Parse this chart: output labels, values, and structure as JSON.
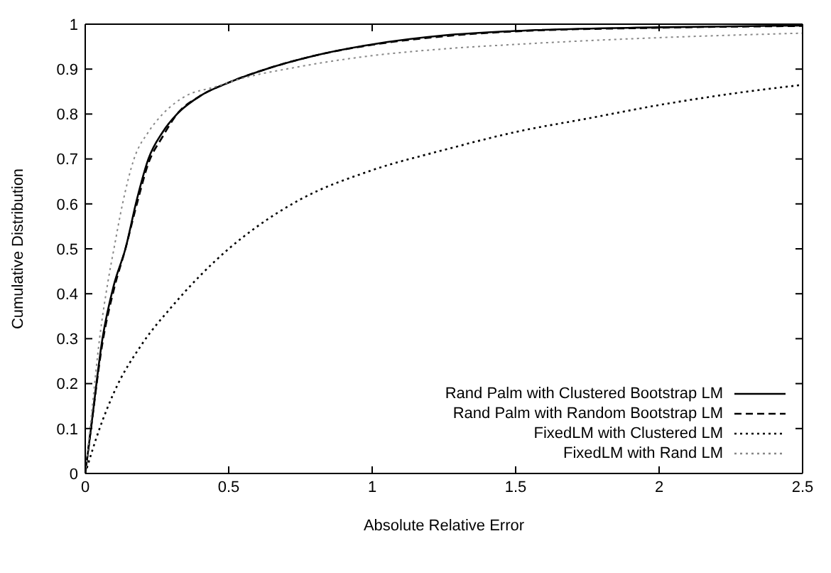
{
  "chart_data": {
    "type": "line",
    "xlabel": "Absolute Relative Error",
    "ylabel": "Cumulative Distribution",
    "xlim": [
      0,
      2.5
    ],
    "ylim": [
      0,
      1
    ],
    "xticks": [
      0,
      0.5,
      1,
      1.5,
      2,
      2.5
    ],
    "yticks": [
      0,
      0.1,
      0.2,
      0.3,
      0.4,
      0.5,
      0.6,
      0.7,
      0.8,
      0.9,
      1
    ],
    "legend": "bottom right",
    "marker": "none",
    "series": [
      {
        "name": "Rand Palm with Clustered Bootstrap LM",
        "color": "#000000",
        "line_style": "solid",
        "x": [
          0,
          0.02,
          0.06,
          0.1,
          0.14,
          0.18,
          0.22,
          0.27,
          0.32,
          0.4,
          0.5,
          0.63,
          0.8,
          1,
          1.25,
          1.5,
          2,
          2.5
        ],
        "values": [
          0,
          0.1,
          0.3,
          0.42,
          0.5,
          0.61,
          0.7,
          0.76,
          0.8,
          0.84,
          0.87,
          0.9,
          0.93,
          0.955,
          0.975,
          0.985,
          0.993,
          0.997
        ]
      },
      {
        "name": "Rand Palm with Random Bootstrap LM",
        "color": "#000000",
        "line_style": "dashed",
        "x": [
          0,
          0.02,
          0.06,
          0.1,
          0.14,
          0.18,
          0.22,
          0.27,
          0.32,
          0.4,
          0.5,
          0.63,
          0.8,
          1,
          1.25,
          1.5,
          2,
          2.5
        ],
        "values": [
          0,
          0.1,
          0.29,
          0.41,
          0.5,
          0.6,
          0.69,
          0.75,
          0.8,
          0.84,
          0.87,
          0.9,
          0.93,
          0.954,
          0.973,
          0.984,
          0.992,
          0.996
        ]
      },
      {
        "name": "FixedLM with Clustered LM",
        "color": "#000000",
        "line_style": "dotted",
        "x": [
          0,
          0.05,
          0.1,
          0.2,
          0.3,
          0.4,
          0.5,
          0.6,
          0.75,
          1,
          1.25,
          1.5,
          1.75,
          2,
          2.25,
          2.5
        ],
        "values": [
          0,
          0.1,
          0.18,
          0.29,
          0.37,
          0.44,
          0.5,
          0.55,
          0.61,
          0.675,
          0.72,
          0.76,
          0.79,
          0.82,
          0.845,
          0.865
        ]
      },
      {
        "name": "FixedLM with Rand LM",
        "color": "#888888",
        "line_style": "dotted",
        "x": [
          0,
          0.02,
          0.05,
          0.08,
          0.1,
          0.13,
          0.17,
          0.22,
          0.27,
          0.35,
          0.45,
          0.55,
          0.7,
          1,
          1.25,
          1.5,
          2,
          2.5
        ],
        "values": [
          0,
          0.12,
          0.3,
          0.43,
          0.5,
          0.6,
          0.7,
          0.76,
          0.8,
          0.84,
          0.86,
          0.88,
          0.9,
          0.93,
          0.945,
          0.955,
          0.97,
          0.98
        ]
      }
    ]
  }
}
